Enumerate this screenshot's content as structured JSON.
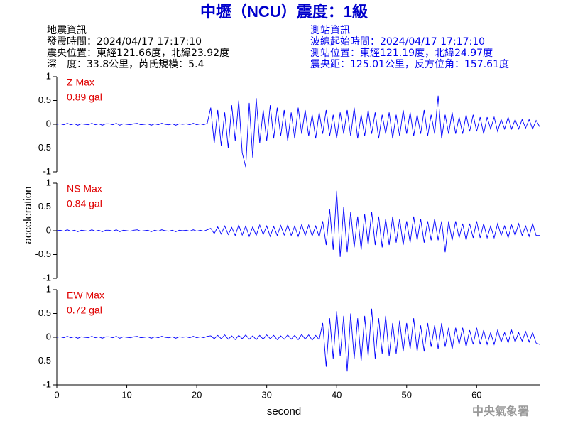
{
  "title": "中壢（NCU）震度：1級",
  "event_info": {
    "heading": "地震資訊",
    "lines": [
      "發震時間：2024/04/17 17:17:10",
      "震央位置：東經121.66度，北緯23.92度",
      "深　度：33.8公里，芮氏規模：5.4"
    ]
  },
  "station_info": {
    "heading": "測站資訊",
    "lines": [
      "波線起始時間：2024/04/17 17:17:10",
      "測站位置：東經121.19度，北緯24.97度",
      "震央距：125.01公里，反方位角：157.61度"
    ]
  },
  "watermark": "中央氣象署",
  "chart_data": {
    "type": "line",
    "layout": "stacked",
    "xlabel": "second",
    "ylabel": "acceleration",
    "xlim": [
      0,
      69
    ],
    "xticks": [
      0,
      10,
      20,
      30,
      40,
      50,
      60
    ],
    "ylim": [
      -1,
      1
    ],
    "yticks": [
      -1,
      -0.5,
      0,
      0.5,
      1
    ],
    "x": [
      0,
      0.5,
      1,
      1.5,
      2,
      2.5,
      3,
      3.5,
      4,
      4.5,
      5,
      5.5,
      6,
      6.5,
      7,
      7.5,
      8,
      8.5,
      9,
      9.5,
      10,
      10.5,
      11,
      11.5,
      12,
      12.5,
      13,
      13.5,
      14,
      14.5,
      15,
      15.5,
      16,
      16.5,
      17,
      17.5,
      18,
      18.5,
      19,
      19.5,
      20,
      20.5,
      21,
      21.5,
      22,
      22.5,
      23,
      23.5,
      24,
      24.5,
      25,
      25.5,
      26,
      26.5,
      27,
      27.5,
      28,
      28.5,
      29,
      29.5,
      30,
      30.5,
      31,
      31.5,
      32,
      32.5,
      33,
      33.5,
      34,
      34.5,
      35,
      35.5,
      36,
      36.5,
      37,
      37.5,
      38,
      38.5,
      39,
      39.5,
      40,
      40.5,
      41,
      41.5,
      42,
      42.5,
      43,
      43.5,
      44,
      44.5,
      45,
      45.5,
      46,
      46.5,
      47,
      47.5,
      48,
      48.5,
      49,
      49.5,
      50,
      50.5,
      51,
      51.5,
      52,
      52.5,
      53,
      53.5,
      54,
      54.5,
      55,
      55.5,
      56,
      56.5,
      57,
      57.5,
      58,
      58.5,
      59,
      59.5,
      60,
      60.5,
      61,
      61.5,
      62,
      62.5,
      63,
      63.5,
      64,
      64.5,
      65,
      65.5,
      66,
      66.5,
      67,
      67.5,
      68,
      68.5,
      69
    ],
    "series": [
      {
        "name": "Z Max",
        "peak_label": "0.89 gal",
        "color": "#0000ff",
        "values": [
          0,
          0.01,
          -0.01,
          0.02,
          -0.01,
          0.01,
          -0.02,
          0.01,
          0,
          -0.01,
          0.02,
          -0.01,
          0.01,
          -0.02,
          0.01,
          0.01,
          -0.01,
          0.02,
          -0.02,
          0.01,
          0,
          -0.01,
          0.01,
          0.02,
          -0.01,
          0,
          0.01,
          -0.02,
          0.01,
          -0.01,
          0.02,
          0,
          -0.01,
          0.01,
          -0.02,
          0.01,
          0,
          0.01,
          -0.01,
          0.02,
          -0.01,
          0.01,
          -0.01,
          0.02,
          0.35,
          -0.4,
          0.3,
          -0.45,
          0.25,
          -0.5,
          0.4,
          -0.35,
          0.5,
          -0.6,
          -0.9,
          0.45,
          -0.7,
          0.55,
          -0.4,
          0.3,
          -0.35,
          0.4,
          -0.3,
          0.35,
          -0.25,
          0.3,
          -0.35,
          0.25,
          -0.3,
          0.35,
          -0.2,
          0.3,
          -0.25,
          0.2,
          -0.3,
          0.25,
          -0.2,
          0.3,
          -0.25,
          0.2,
          -0.3,
          0.25,
          -0.2,
          0.3,
          -0.25,
          0.35,
          -0.3,
          0.2,
          -0.25,
          0.3,
          -0.2,
          0.25,
          -0.3,
          0.2,
          -0.2,
          0.25,
          -0.3,
          0.2,
          -0.25,
          0.3,
          -0.2,
          0.25,
          -0.25,
          0.2,
          -0.2,
          0.3,
          -0.25,
          0.2,
          -0.2,
          0.6,
          -0.3,
          0.2,
          -0.2,
          0.25,
          -0.2,
          0.15,
          -0.2,
          0.2,
          -0.15,
          0.2,
          -0.15,
          0.15,
          -0.2,
          0.15,
          -0.1,
          0.15,
          -0.15,
          0.1,
          -0.1,
          0.15,
          -0.1,
          0.1,
          -0.1,
          0.1,
          -0.08,
          0.1,
          -0.1,
          0.08,
          -0.05
        ]
      },
      {
        "name": "NS Max",
        "peak_label": "0.84 gal",
        "color": "#0000ff",
        "values": [
          0,
          0.01,
          -0.01,
          0.02,
          -0.01,
          0.01,
          -0.02,
          0.01,
          0,
          -0.01,
          0.02,
          -0.01,
          0.01,
          -0.02,
          0.01,
          0.01,
          -0.01,
          0.02,
          -0.02,
          0.01,
          0,
          -0.01,
          0.01,
          0.02,
          -0.01,
          0,
          0.01,
          -0.02,
          0.01,
          -0.01,
          0.02,
          0,
          -0.01,
          0.01,
          -0.02,
          0.01,
          0,
          0.01,
          -0.01,
          0.02,
          -0.01,
          0.01,
          -0.01,
          0.02,
          0.05,
          -0.06,
          0.08,
          -0.07,
          0.1,
          -0.08,
          0.07,
          -0.1,
          0.12,
          -0.09,
          0.1,
          -0.12,
          0.08,
          -0.1,
          0.12,
          -0.08,
          0.1,
          -0.12,
          0.09,
          -0.1,
          0.11,
          -0.09,
          0.12,
          -0.1,
          0.1,
          -0.12,
          0.13,
          -0.1,
          0.12,
          -0.11,
          0.1,
          -0.13,
          0.2,
          -0.3,
          0.45,
          -0.4,
          0.84,
          -0.55,
          0.5,
          -0.45,
          0.4,
          -0.35,
          0.3,
          -0.4,
          0.35,
          -0.3,
          0.4,
          -0.3,
          0.3,
          -0.35,
          0.25,
          -0.3,
          0.3,
          -0.25,
          0.25,
          -0.3,
          0.2,
          -0.25,
          0.3,
          -0.2,
          0.25,
          -0.25,
          0.2,
          -0.2,
          0.25,
          -0.2,
          0.2,
          -0.45,
          0.2,
          -0.2,
          0.2,
          -0.15,
          0.15,
          -0.2,
          0.15,
          -0.15,
          0.2,
          -0.15,
          0.15,
          -0.15,
          0.1,
          -0.15,
          0.15,
          -0.1,
          0.1,
          -0.15,
          0.12,
          -0.1,
          0.15,
          -0.1,
          0.1,
          -0.12,
          0.15,
          -0.1,
          -0.1
        ]
      },
      {
        "name": "EW Max",
        "peak_label": "0.72 gal",
        "color": "#0000ff",
        "values": [
          0,
          0.01,
          -0.01,
          0.02,
          -0.01,
          0.01,
          -0.02,
          0.01,
          0,
          -0.01,
          0.02,
          -0.01,
          0.01,
          -0.02,
          0.01,
          0.01,
          -0.01,
          0.02,
          -0.02,
          0.01,
          0,
          -0.01,
          0.01,
          0.02,
          -0.01,
          0,
          0.01,
          -0.02,
          0.01,
          -0.01,
          0.02,
          0,
          -0.01,
          0.01,
          -0.02,
          0.01,
          0,
          0.01,
          -0.01,
          0.02,
          -0.01,
          0.01,
          -0.01,
          0.02,
          0.03,
          -0.03,
          0.04,
          -0.03,
          0.05,
          -0.04,
          0.03,
          -0.05,
          0.04,
          -0.03,
          0.05,
          -0.04,
          0.03,
          -0.05,
          0.04,
          -0.04,
          0.05,
          -0.03,
          0.04,
          -0.05,
          0.03,
          -0.04,
          0.05,
          -0.04,
          0.04,
          -0.05,
          0.06,
          -0.04,
          0.05,
          -0.06,
          0.04,
          -0.05,
          0.3,
          -0.62,
          0.4,
          -0.45,
          0.55,
          -0.4,
          0.45,
          -0.72,
          0.5,
          -0.45,
          0.4,
          -0.5,
          0.45,
          -0.4,
          0.6,
          -0.45,
          0.4,
          -0.35,
          0.45,
          -0.4,
          0.3,
          -0.35,
          0.35,
          -0.3,
          0.3,
          -0.25,
          0.4,
          -0.3,
          0.25,
          -0.3,
          0.3,
          -0.2,
          0.25,
          -0.25,
          0.3,
          -0.2,
          0.2,
          -0.25,
          0.2,
          -0.15,
          0.2,
          -0.2,
          0.15,
          -0.15,
          0.2,
          -0.15,
          0.15,
          -0.15,
          0.1,
          -0.15,
          0.15,
          -0.1,
          0.1,
          -0.12,
          0.15,
          -0.1,
          0.1,
          -0.08,
          0.12,
          -0.1,
          0.1,
          -0.12,
          -0.15
        ]
      }
    ]
  }
}
